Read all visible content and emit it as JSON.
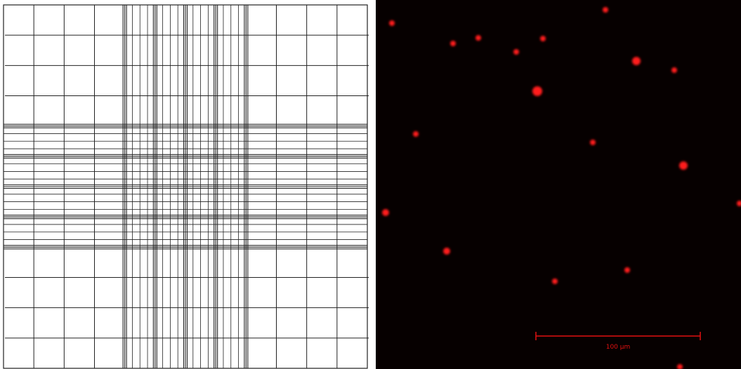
{
  "scale_bar": {
    "label": "100 µm"
  }
}
